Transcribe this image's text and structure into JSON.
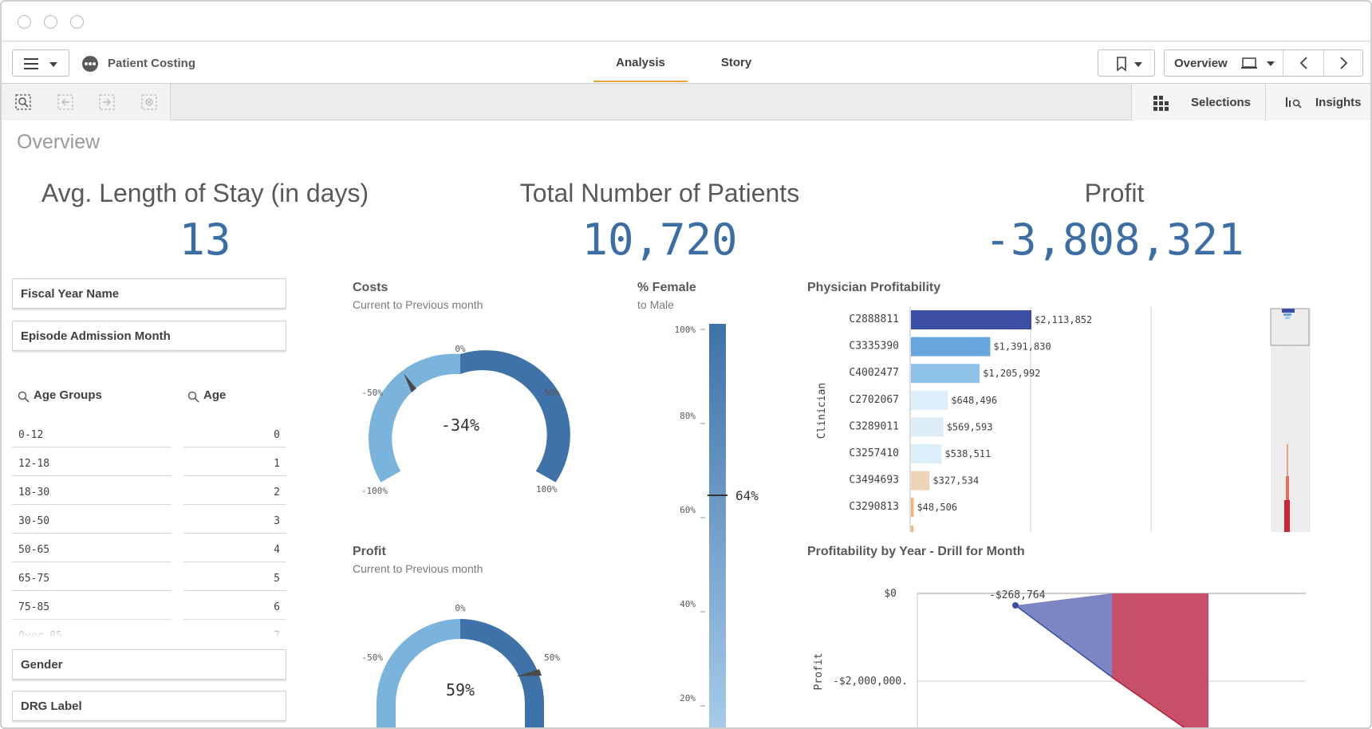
{
  "app": {
    "title": "Patient Costing"
  },
  "tabs": [
    {
      "label": "Analysis",
      "active": true
    },
    {
      "label": "Story",
      "active": false
    }
  ],
  "nav": {
    "sheet_selector": "Overview"
  },
  "toolbar": {
    "selections_label": "Selections",
    "insights_label": "Insights"
  },
  "sheet": {
    "title": "Overview"
  },
  "kpis": [
    {
      "title": "Avg. Length of Stay (in days)",
      "value": "13"
    },
    {
      "title": "Total Number of Patients",
      "value": "10,720"
    },
    {
      "title": "Profit",
      "value": "-3,808,321"
    }
  ],
  "filters": {
    "fiscal_year": "Fiscal Year Name",
    "episode_month": "Episode Admission Month",
    "gender": "Gender",
    "drg": "DRG Label"
  },
  "listboxes": {
    "age_groups": {
      "title": "Age Groups",
      "items": [
        "0-12",
        "12-18",
        "18-30",
        "30-50",
        "50-65",
        "65-75",
        "75-85",
        "Over 85"
      ]
    },
    "age": {
      "title": "Age",
      "items": [
        "0",
        "1",
        "2",
        "3",
        "4",
        "5",
        "6",
        "7"
      ]
    }
  },
  "costs_gauge": {
    "title": "Costs",
    "subtitle": "Current to Previous month",
    "value_label": "-34%",
    "value": -0.34,
    "ticks": [
      "0%",
      "-50%",
      "50%",
      "-100%",
      "100%"
    ]
  },
  "profit_gauge": {
    "title": "Profit",
    "subtitle": "Current to Previous month",
    "value_label": "59%",
    "value": 0.59,
    "ticks": [
      "0%",
      "-50%",
      "50%"
    ]
  },
  "female": {
    "title": "% Female",
    "subtitle": "to Male",
    "value_label": "64%",
    "value": 64,
    "ticks": [
      "100%",
      "80%",
      "60%",
      "40%",
      "20%"
    ]
  },
  "chart_data": [
    {
      "type": "bar",
      "title": "Physician Profitability",
      "ylabel": "Clinician",
      "categories": [
        "C2888811",
        "C3335390",
        "C4002477",
        "C2702067",
        "C3289011",
        "C3257410",
        "C3494693",
        "C3290813"
      ],
      "values": [
        2113852,
        1391830,
        1205992,
        648496,
        569593,
        538511,
        327534,
        48506
      ],
      "labels": [
        "$2,113,852",
        "$1,391,830",
        "$1,205,992",
        "$648,496",
        "$569,593",
        "$538,511",
        "$327,534",
        "$48,506"
      ],
      "colors": [
        "#3b4ea3",
        "#67a6dc",
        "#8ec2e7",
        "#dbeef9",
        "#dcedf8",
        "#dceefa",
        "#efd3b6",
        "#f0b37a"
      ]
    },
    {
      "type": "area",
      "title": "Profitability by Year - Drill for Month",
      "ylabel": "Profit",
      "y_ticks": [
        "$0",
        "-$2,000,000."
      ],
      "annotation": "-$268,764",
      "colors": {
        "positive": "#7b86c2",
        "negative": "#c75068"
      }
    }
  ]
}
